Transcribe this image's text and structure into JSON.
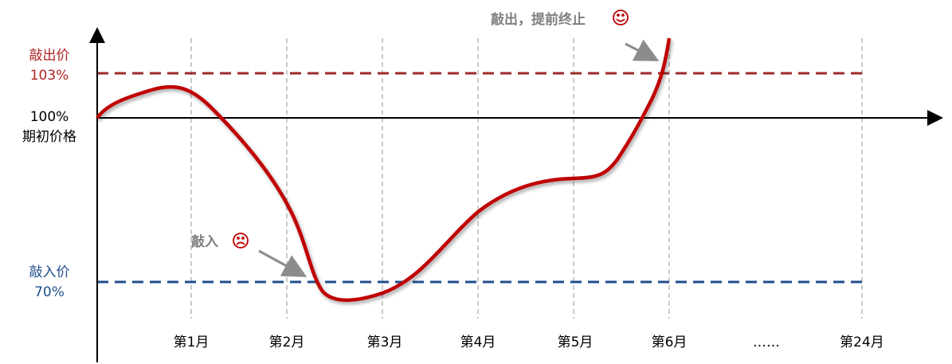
{
  "levels": {
    "knock_out": {
      "name": "敲出价",
      "level": "103%"
    },
    "initial": {
      "level": "100%",
      "name": "期初价格"
    },
    "knock_in": {
      "name": "敲入价",
      "level": "70%"
    }
  },
  "months": [
    "第1月",
    "第2月",
    "第3月",
    "第4月",
    "第5月",
    "第6月",
    "……",
    "第24月"
  ],
  "annotations": {
    "knock_out": "敲出，提前终止",
    "knock_in": "敲入"
  }
}
